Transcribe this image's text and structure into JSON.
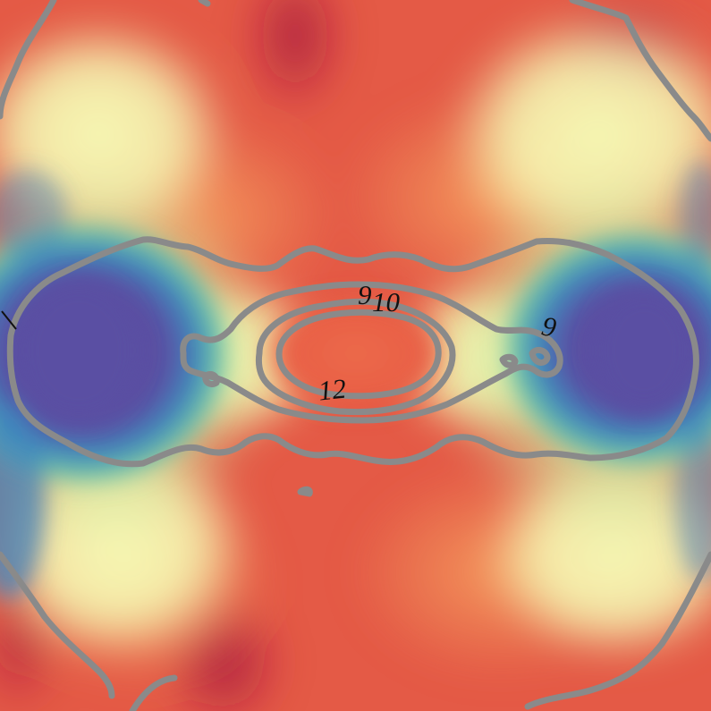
{
  "colors": {
    "contour": "#8a8a8a",
    "background": "#e45a46",
    "core": "#ea6448",
    "lobe_deep": "#5a4fa3",
    "lobe_blue": "#3f86bd",
    "teal": "#6cc3a6",
    "pale_yellow": "#f5f9b4",
    "light_green": "#cfeaa2",
    "orange": "#f6a160",
    "deep_red": "#a4123f"
  },
  "contour_labels": [
    {
      "text": "9",
      "ref": "contour-9-inner"
    },
    {
      "text": "10",
      "ref": "contour-10"
    },
    {
      "text": "9",
      "ref": "contour-9-outer"
    },
    {
      "text": "12",
      "ref": "contour-12"
    }
  ]
}
